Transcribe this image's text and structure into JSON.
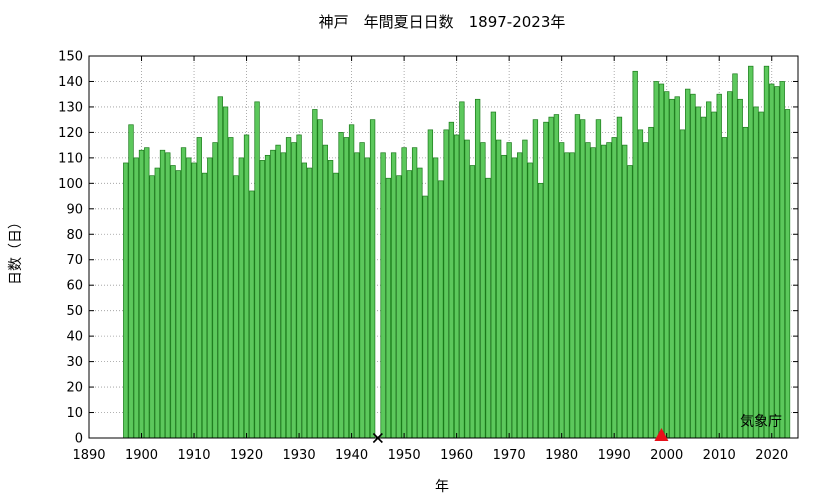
{
  "chart_data": {
    "type": "bar",
    "title": "神戸　年間夏日日数　1897-2023年",
    "xlabel": "年",
    "ylabel": "日数（日）",
    "credit": "気象庁",
    "xlim": [
      1890,
      2025
    ],
    "ylim": [
      0,
      150
    ],
    "x_ticks": [
      1890,
      1900,
      1910,
      1920,
      1930,
      1940,
      1950,
      1960,
      1970,
      1980,
      1990,
      2000,
      2010,
      2020
    ],
    "y_ticks": [
      0,
      10,
      20,
      30,
      40,
      50,
      60,
      70,
      80,
      90,
      100,
      110,
      120,
      130,
      140,
      150
    ],
    "grid": true,
    "bar_color": "#5cc85c",
    "bar_edge_color": "#1a7a1a",
    "x": [
      1897,
      1898,
      1899,
      1900,
      1901,
      1902,
      1903,
      1904,
      1905,
      1906,
      1907,
      1908,
      1909,
      1910,
      1911,
      1912,
      1913,
      1914,
      1915,
      1916,
      1917,
      1918,
      1919,
      1920,
      1921,
      1922,
      1923,
      1924,
      1925,
      1926,
      1927,
      1928,
      1929,
      1930,
      1931,
      1932,
      1933,
      1934,
      1935,
      1936,
      1937,
      1938,
      1939,
      1940,
      1941,
      1942,
      1943,
      1944,
      1945,
      1946,
      1947,
      1948,
      1949,
      1950,
      1951,
      1952,
      1953,
      1954,
      1955,
      1956,
      1957,
      1958,
      1959,
      1960,
      1961,
      1962,
      1963,
      1964,
      1965,
      1966,
      1967,
      1968,
      1969,
      1970,
      1971,
      1972,
      1973,
      1974,
      1975,
      1976,
      1977,
      1978,
      1979,
      1980,
      1981,
      1982,
      1983,
      1984,
      1985,
      1986,
      1987,
      1988,
      1989,
      1990,
      1991,
      1992,
      1993,
      1994,
      1995,
      1996,
      1997,
      1998,
      1999,
      2000,
      2001,
      2002,
      2003,
      2004,
      2005,
      2006,
      2007,
      2008,
      2009,
      2010,
      2011,
      2012,
      2013,
      2014,
      2015,
      2016,
      2017,
      2018,
      2019,
      2020,
      2021,
      2022,
      2023
    ],
    "values": [
      108,
      123,
      110,
      113,
      114,
      103,
      106,
      113,
      112,
      107,
      105,
      114,
      110,
      108,
      118,
      104,
      110,
      116,
      134,
      130,
      118,
      103,
      110,
      119,
      97,
      132,
      109,
      111,
      113,
      115,
      112,
      118,
      116,
      119,
      108,
      106,
      129,
      125,
      115,
      109,
      104,
      120,
      118,
      123,
      112,
      116,
      110,
      125,
      null,
      112,
      102,
      112,
      103,
      114,
      105,
      114,
      106,
      95,
      121,
      110,
      101,
      121,
      124,
      119,
      132,
      117,
      107,
      133,
      116,
      102,
      128,
      117,
      111,
      116,
      110,
      112,
      117,
      108,
      125,
      100,
      124,
      126,
      127,
      116,
      112,
      112,
      127,
      125,
      116,
      114,
      125,
      115,
      116,
      118,
      126,
      115,
      107,
      144,
      121,
      116,
      122,
      140,
      139,
      136,
      133,
      134,
      121,
      137,
      135,
      130,
      126,
      132,
      128,
      135,
      118,
      136,
      143,
      133,
      122,
      146,
      130,
      128,
      146,
      139,
      138,
      140,
      129
    ],
    "markers": [
      {
        "type": "cross",
        "x": 1945,
        "y": 0,
        "color": "#000000"
      },
      {
        "type": "triangle",
        "x": 1999,
        "y": 0,
        "color": "#e8101a"
      }
    ]
  }
}
